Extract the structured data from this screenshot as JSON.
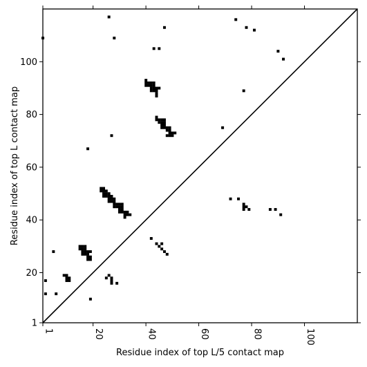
{
  "chart_data": {
    "type": "heatmap",
    "subtype": "contact-map",
    "xlabel": "Residue index of top L/5 contact map",
    "ylabel": "Residue index of top L contact map",
    "xlim": [
      1,
      120
    ],
    "ylim": [
      1,
      120
    ],
    "x_ticks": [
      1,
      20,
      40,
      60,
      80,
      100
    ],
    "y_ticks": [
      1,
      20,
      40,
      60,
      80,
      100
    ],
    "x_tick_rotation_deg": 90,
    "grid": false,
    "diagonal_line": true,
    "cell_color": "#000000",
    "upper_triangle_contacts": [
      [
        1,
        109
      ],
      [
        26,
        117
      ],
      [
        28,
        109
      ],
      [
        43,
        105
      ],
      [
        45,
        105
      ],
      [
        47,
        113
      ],
      [
        74,
        116
      ],
      [
        78,
        113
      ],
      [
        81,
        112
      ],
      [
        90,
        104
      ],
      [
        92,
        101
      ],
      [
        18,
        67
      ],
      [
        27,
        72
      ],
      [
        69,
        75
      ],
      [
        77,
        89
      ],
      [
        40,
        93
      ],
      [
        40,
        92
      ],
      [
        41,
        92
      ],
      [
        42,
        92
      ],
      [
        43,
        92
      ],
      [
        40,
        91
      ],
      [
        41,
        91
      ],
      [
        42,
        91
      ],
      [
        43,
        91
      ],
      [
        42,
        90
      ],
      [
        43,
        90
      ],
      [
        44,
        90
      ],
      [
        45,
        90
      ],
      [
        42,
        89
      ],
      [
        43,
        89
      ],
      [
        44,
        89
      ],
      [
        44,
        88
      ],
      [
        44,
        87
      ],
      [
        44,
        79
      ],
      [
        44,
        78
      ],
      [
        45,
        78
      ],
      [
        46,
        78
      ],
      [
        47,
        78
      ],
      [
        45,
        77
      ],
      [
        46,
        77
      ],
      [
        47,
        77
      ],
      [
        46,
        76
      ],
      [
        47,
        76
      ],
      [
        46,
        75
      ],
      [
        47,
        75
      ],
      [
        48,
        75
      ],
      [
        49,
        75
      ],
      [
        48,
        74
      ],
      [
        49,
        74
      ],
      [
        49,
        73
      ],
      [
        50,
        73
      ],
      [
        51,
        73
      ],
      [
        48,
        72
      ],
      [
        49,
        72
      ],
      [
        50,
        72
      ]
    ],
    "lower_triangle_contacts": [
      [
        23,
        52
      ],
      [
        24,
        52
      ],
      [
        23,
        51
      ],
      [
        24,
        51
      ],
      [
        25,
        51
      ],
      [
        24,
        50
      ],
      [
        25,
        50
      ],
      [
        26,
        50
      ],
      [
        24,
        49
      ],
      [
        25,
        49
      ],
      [
        26,
        49
      ],
      [
        27,
        49
      ],
      [
        26,
        48
      ],
      [
        27,
        48
      ],
      [
        28,
        48
      ],
      [
        26,
        47
      ],
      [
        27,
        47
      ],
      [
        28,
        47
      ],
      [
        28,
        46
      ],
      [
        29,
        46
      ],
      [
        30,
        46
      ],
      [
        31,
        46
      ],
      [
        28,
        45
      ],
      [
        29,
        45
      ],
      [
        30,
        45
      ],
      [
        31,
        45
      ],
      [
        30,
        44
      ],
      [
        31,
        44
      ],
      [
        30,
        43
      ],
      [
        31,
        43
      ],
      [
        32,
        43
      ],
      [
        33,
        43
      ],
      [
        32,
        42
      ],
      [
        33,
        42
      ],
      [
        34,
        42
      ],
      [
        32,
        41
      ],
      [
        72,
        48
      ],
      [
        75,
        48
      ],
      [
        77,
        46
      ],
      [
        77,
        45
      ],
      [
        78,
        45
      ],
      [
        77,
        44
      ],
      [
        79,
        44
      ],
      [
        87,
        44
      ],
      [
        89,
        44
      ],
      [
        91,
        42
      ],
      [
        42,
        33
      ],
      [
        44,
        31
      ],
      [
        46,
        31
      ],
      [
        45,
        30
      ],
      [
        46,
        29
      ],
      [
        47,
        28
      ],
      [
        48,
        27
      ],
      [
        15,
        30
      ],
      [
        16,
        30
      ],
      [
        17,
        30
      ],
      [
        15,
        29
      ],
      [
        16,
        29
      ],
      [
        17,
        29
      ],
      [
        16,
        28
      ],
      [
        17,
        28
      ],
      [
        18,
        28
      ],
      [
        19,
        28
      ],
      [
        16,
        27
      ],
      [
        17,
        27
      ],
      [
        18,
        27
      ],
      [
        18,
        26
      ],
      [
        19,
        26
      ],
      [
        18,
        25
      ],
      [
        19,
        25
      ],
      [
        5,
        28
      ],
      [
        9,
        19
      ],
      [
        10,
        19
      ],
      [
        10,
        18
      ],
      [
        11,
        18
      ],
      [
        10,
        17
      ],
      [
        11,
        17
      ],
      [
        2,
        17
      ],
      [
        2,
        12
      ],
      [
        6,
        12
      ],
      [
        19,
        10
      ],
      [
        26,
        19
      ],
      [
        25,
        18
      ],
      [
        27,
        18
      ],
      [
        27,
        17
      ],
      [
        27,
        16
      ],
      [
        29,
        16
      ]
    ]
  }
}
